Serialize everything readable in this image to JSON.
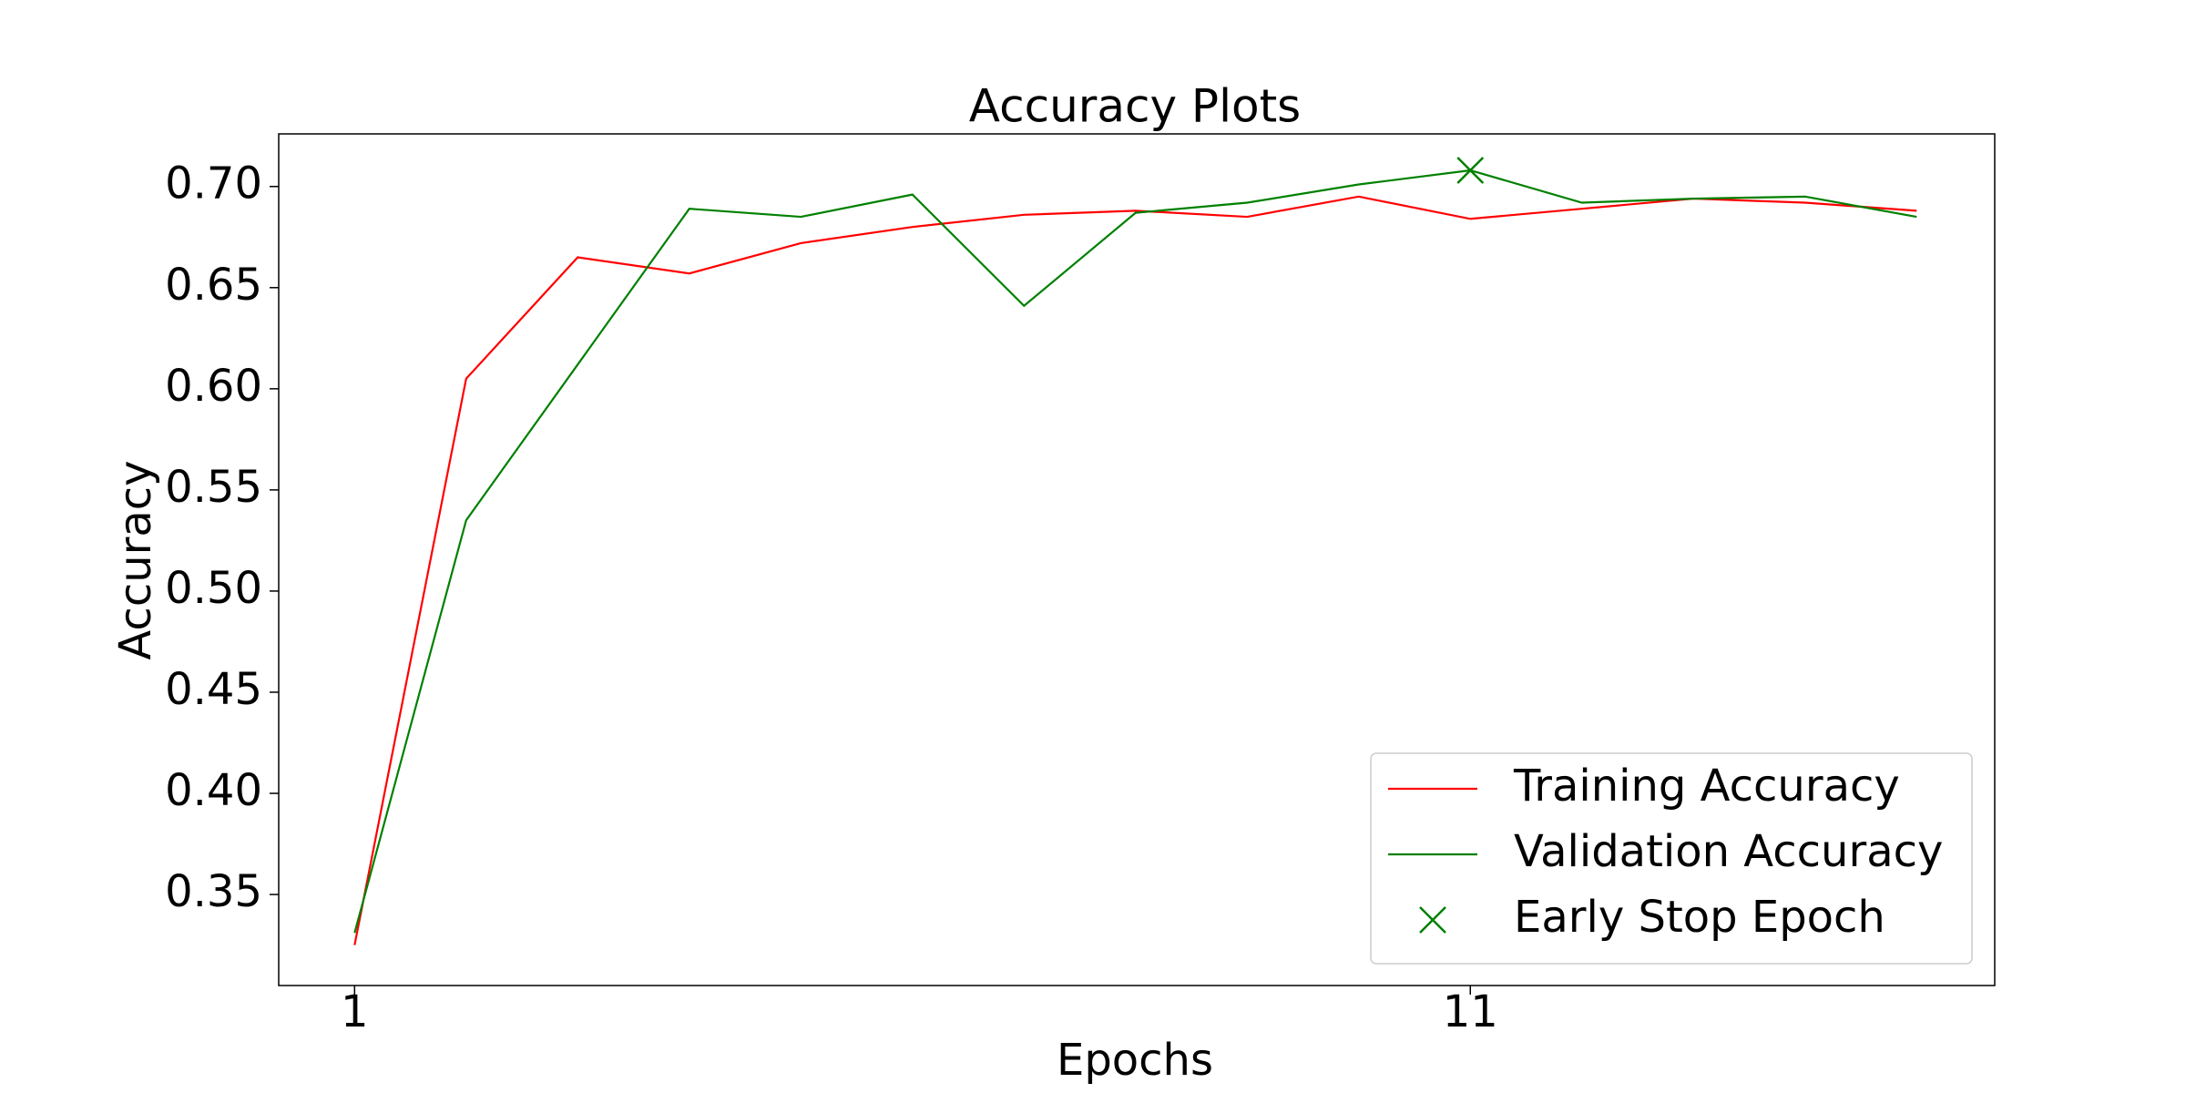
{
  "chart_data": {
    "type": "line",
    "title": "Accuracy Plots",
    "xlabel": "Epochs",
    "ylabel": "Accuracy",
    "x": [
      1,
      2,
      3,
      4,
      5,
      6,
      7,
      8,
      9,
      10,
      11,
      12,
      13,
      14,
      15
    ],
    "series": [
      {
        "name": "Training Accuracy",
        "color": "#ff0000",
        "values": [
          0.325,
          0.605,
          0.665,
          0.657,
          0.672,
          0.68,
          0.686,
          0.688,
          0.685,
          0.695,
          0.684,
          0.689,
          0.694,
          0.692,
          0.688
        ]
      },
      {
        "name": "Validation Accuracy",
        "color": "#008000",
        "values": [
          0.331,
          0.535,
          0.612,
          0.689,
          0.685,
          0.696,
          0.641,
          0.687,
          0.692,
          0.701,
          0.708,
          0.692,
          0.694,
          0.695,
          0.685
        ]
      },
      {
        "name": "Early Stop Epoch",
        "color": "#008000",
        "marker": "x",
        "x": [
          11
        ],
        "values": [
          0.708
        ]
      }
    ],
    "xlim": [
      0.32,
      15.7
    ],
    "xticks": [
      1,
      11
    ],
    "ylim": [
      0.305,
      0.726
    ],
    "yticks": [
      0.35,
      {
        "value": 0.4,
        "label": "0.40"
      },
      0.45,
      {
        "value": 0.5,
        "label": "0.50"
      },
      0.55,
      {
        "value": 0.6,
        "label": "0.60"
      },
      0.65,
      {
        "value": 0.7,
        "label": "0.70"
      }
    ],
    "legend": "lower right"
  }
}
